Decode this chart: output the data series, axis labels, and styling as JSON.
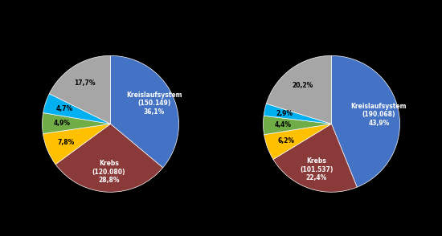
{
  "background_color": "#000000",
  "pie1": {
    "values": [
      36.1,
      28.8,
      7.8,
      4.9,
      4.7,
      17.7
    ],
    "colors": [
      "#4472C4",
      "#8B3A3A",
      "#FFC000",
      "#70AD47",
      "#00B0F0",
      "#A6A6A6"
    ],
    "labels": [
      "Kreislaufsystem\n(150.149)\n36,1%",
      "Krebs\n(120.080)\n28,8%",
      "7,8%",
      "4,9%",
      "4,7%",
      "17,7%"
    ],
    "label_colors": [
      "white",
      "white",
      "black",
      "black",
      "black",
      "black"
    ]
  },
  "pie2": {
    "values": [
      43.9,
      22.4,
      6.2,
      4.4,
      2.9,
      20.2
    ],
    "colors": [
      "#4472C4",
      "#8B3A3A",
      "#FFC000",
      "#70AD47",
      "#00B0F0",
      "#A6A6A6"
    ],
    "labels": [
      "Kreislaufsystem\n(190.068)\n43,9%",
      "Krebs\n(101.537)\n22,4%",
      "6,2%",
      "4,4%",
      "2,9%",
      "20,2%"
    ],
    "label_colors": [
      "white",
      "white",
      "black",
      "black",
      "black",
      "black"
    ]
  },
  "startangle": 90,
  "label_r": 0.6,
  "label_fontsize": 5.5,
  "wedge_linewidth": 0.5,
  "wedge_edgecolor": "#ffffff"
}
